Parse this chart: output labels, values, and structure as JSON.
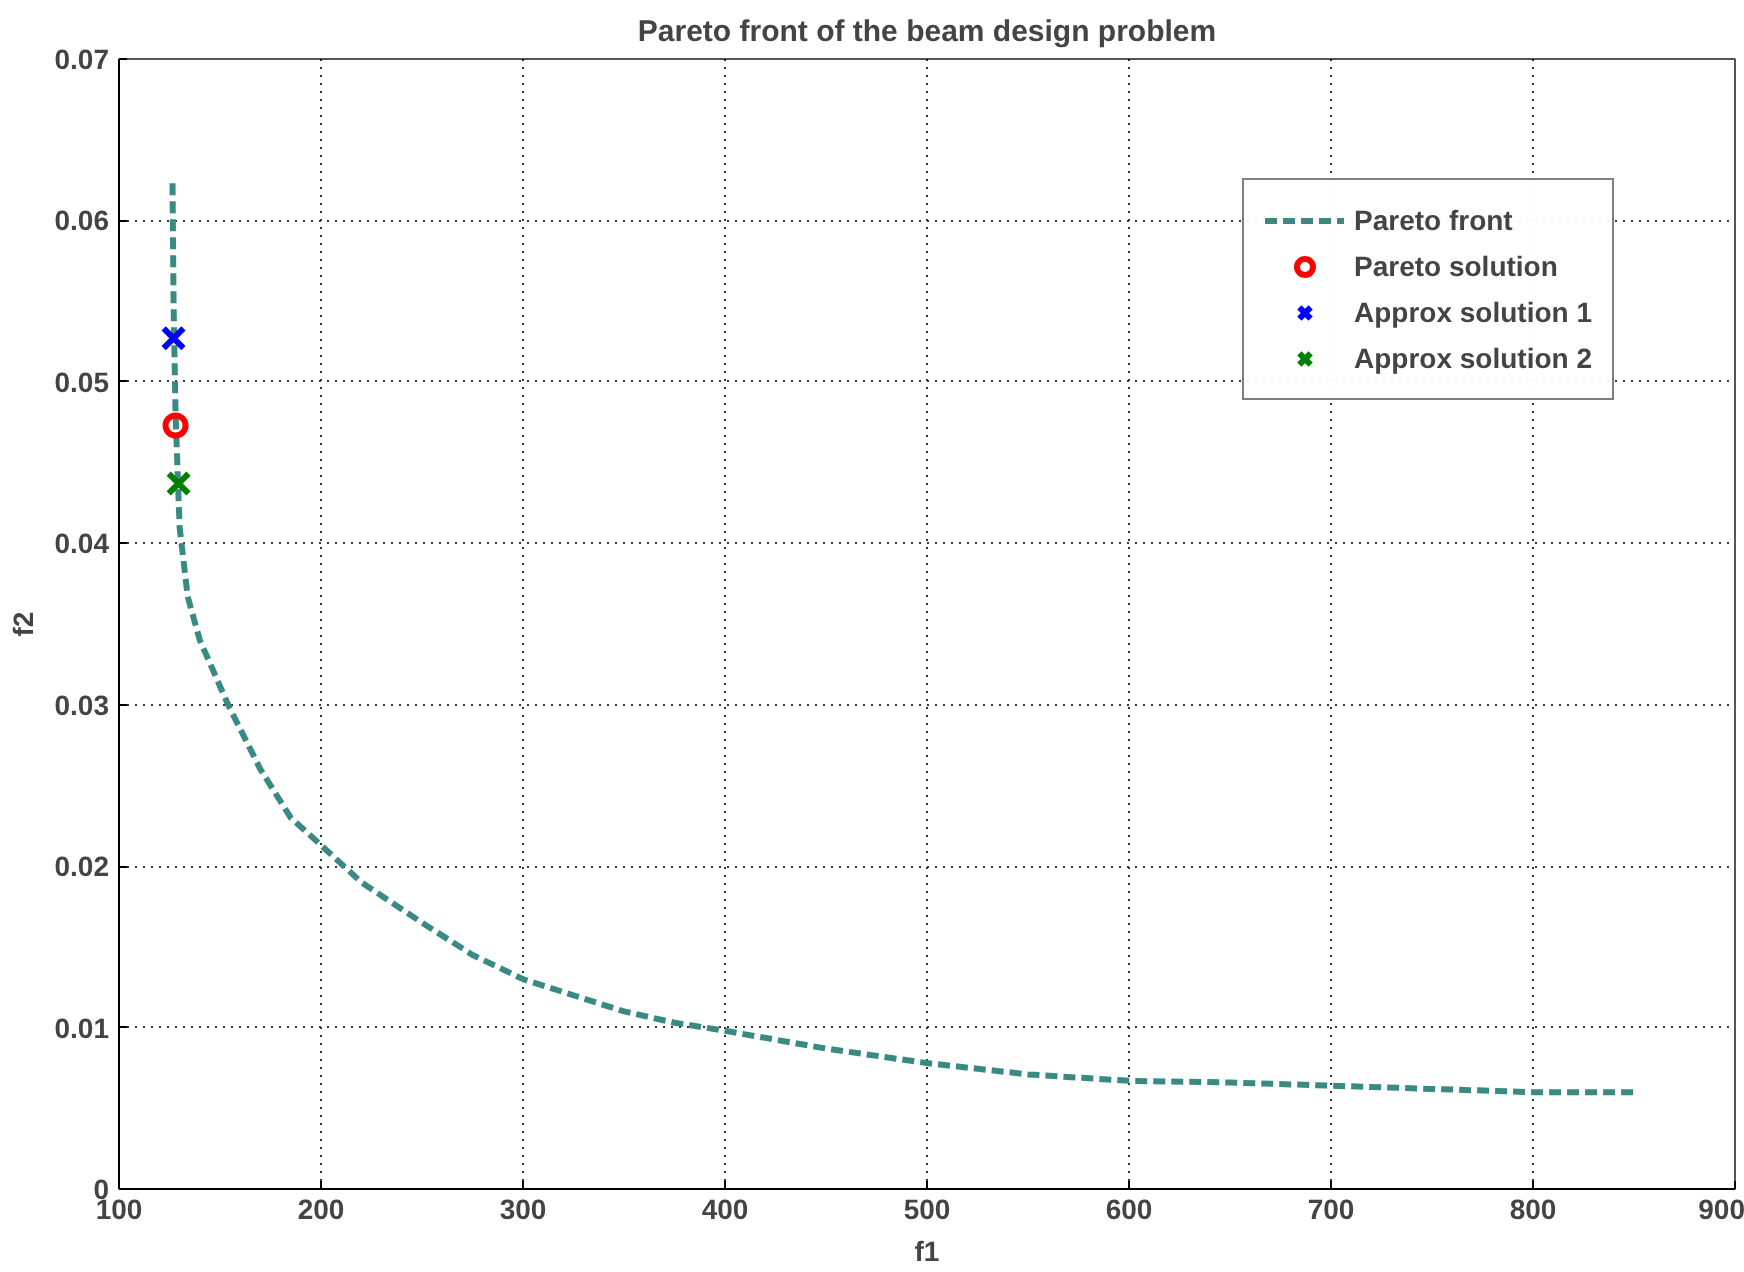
{
  "chart_data": {
    "type": "line",
    "title": "Pareto front of the beam design problem",
    "xlabel": "f1",
    "ylabel": "f2",
    "xlim": [
      100,
      900
    ],
    "ylim": [
      0,
      0.07
    ],
    "xticks": [
      100,
      200,
      300,
      400,
      500,
      600,
      700,
      800,
      900
    ],
    "yticks": [
      0,
      0.01,
      0.02,
      0.03,
      0.04,
      0.05,
      0.06,
      0.07
    ],
    "grid": true,
    "legend": "top right",
    "series": [
      {
        "name": "Pareto front",
        "line_style": "dashed",
        "marker": "none",
        "color": "#3a8a84",
        "x": [
          126.5,
          127,
          128,
          130,
          134,
          140,
          154,
          170,
          185,
          200,
          220,
          250,
          275,
          300,
          330,
          350,
          375,
          400,
          450,
          500,
          550,
          600,
          650,
          700,
          750,
          800,
          850
        ],
        "values": [
          0.0623,
          0.055,
          0.048,
          0.041,
          0.0367,
          0.034,
          0.03,
          0.026,
          0.023,
          0.0213,
          0.019,
          0.0165,
          0.0145,
          0.013,
          0.0118,
          0.011,
          0.0103,
          0.0098,
          0.0087,
          0.0078,
          0.0071,
          0.0067,
          0.0066,
          0.0064,
          0.0062,
          0.006,
          0.006
        ]
      },
      {
        "name": "Pareto solution",
        "type": "scatter",
        "marker": "circle",
        "color": "#ff0000",
        "x": [
          128
        ],
        "values": [
          0.0473
        ]
      },
      {
        "name": "Approx solution 1",
        "type": "scatter",
        "marker": "cross",
        "color": "#0000ff",
        "x": [
          127
        ],
        "values": [
          0.0527
        ]
      },
      {
        "name": "Approx solution 2",
        "type": "scatter",
        "marker": "cross",
        "color": "#008000",
        "x": [
          129.5
        ],
        "values": [
          0.0437
        ]
      }
    ]
  }
}
